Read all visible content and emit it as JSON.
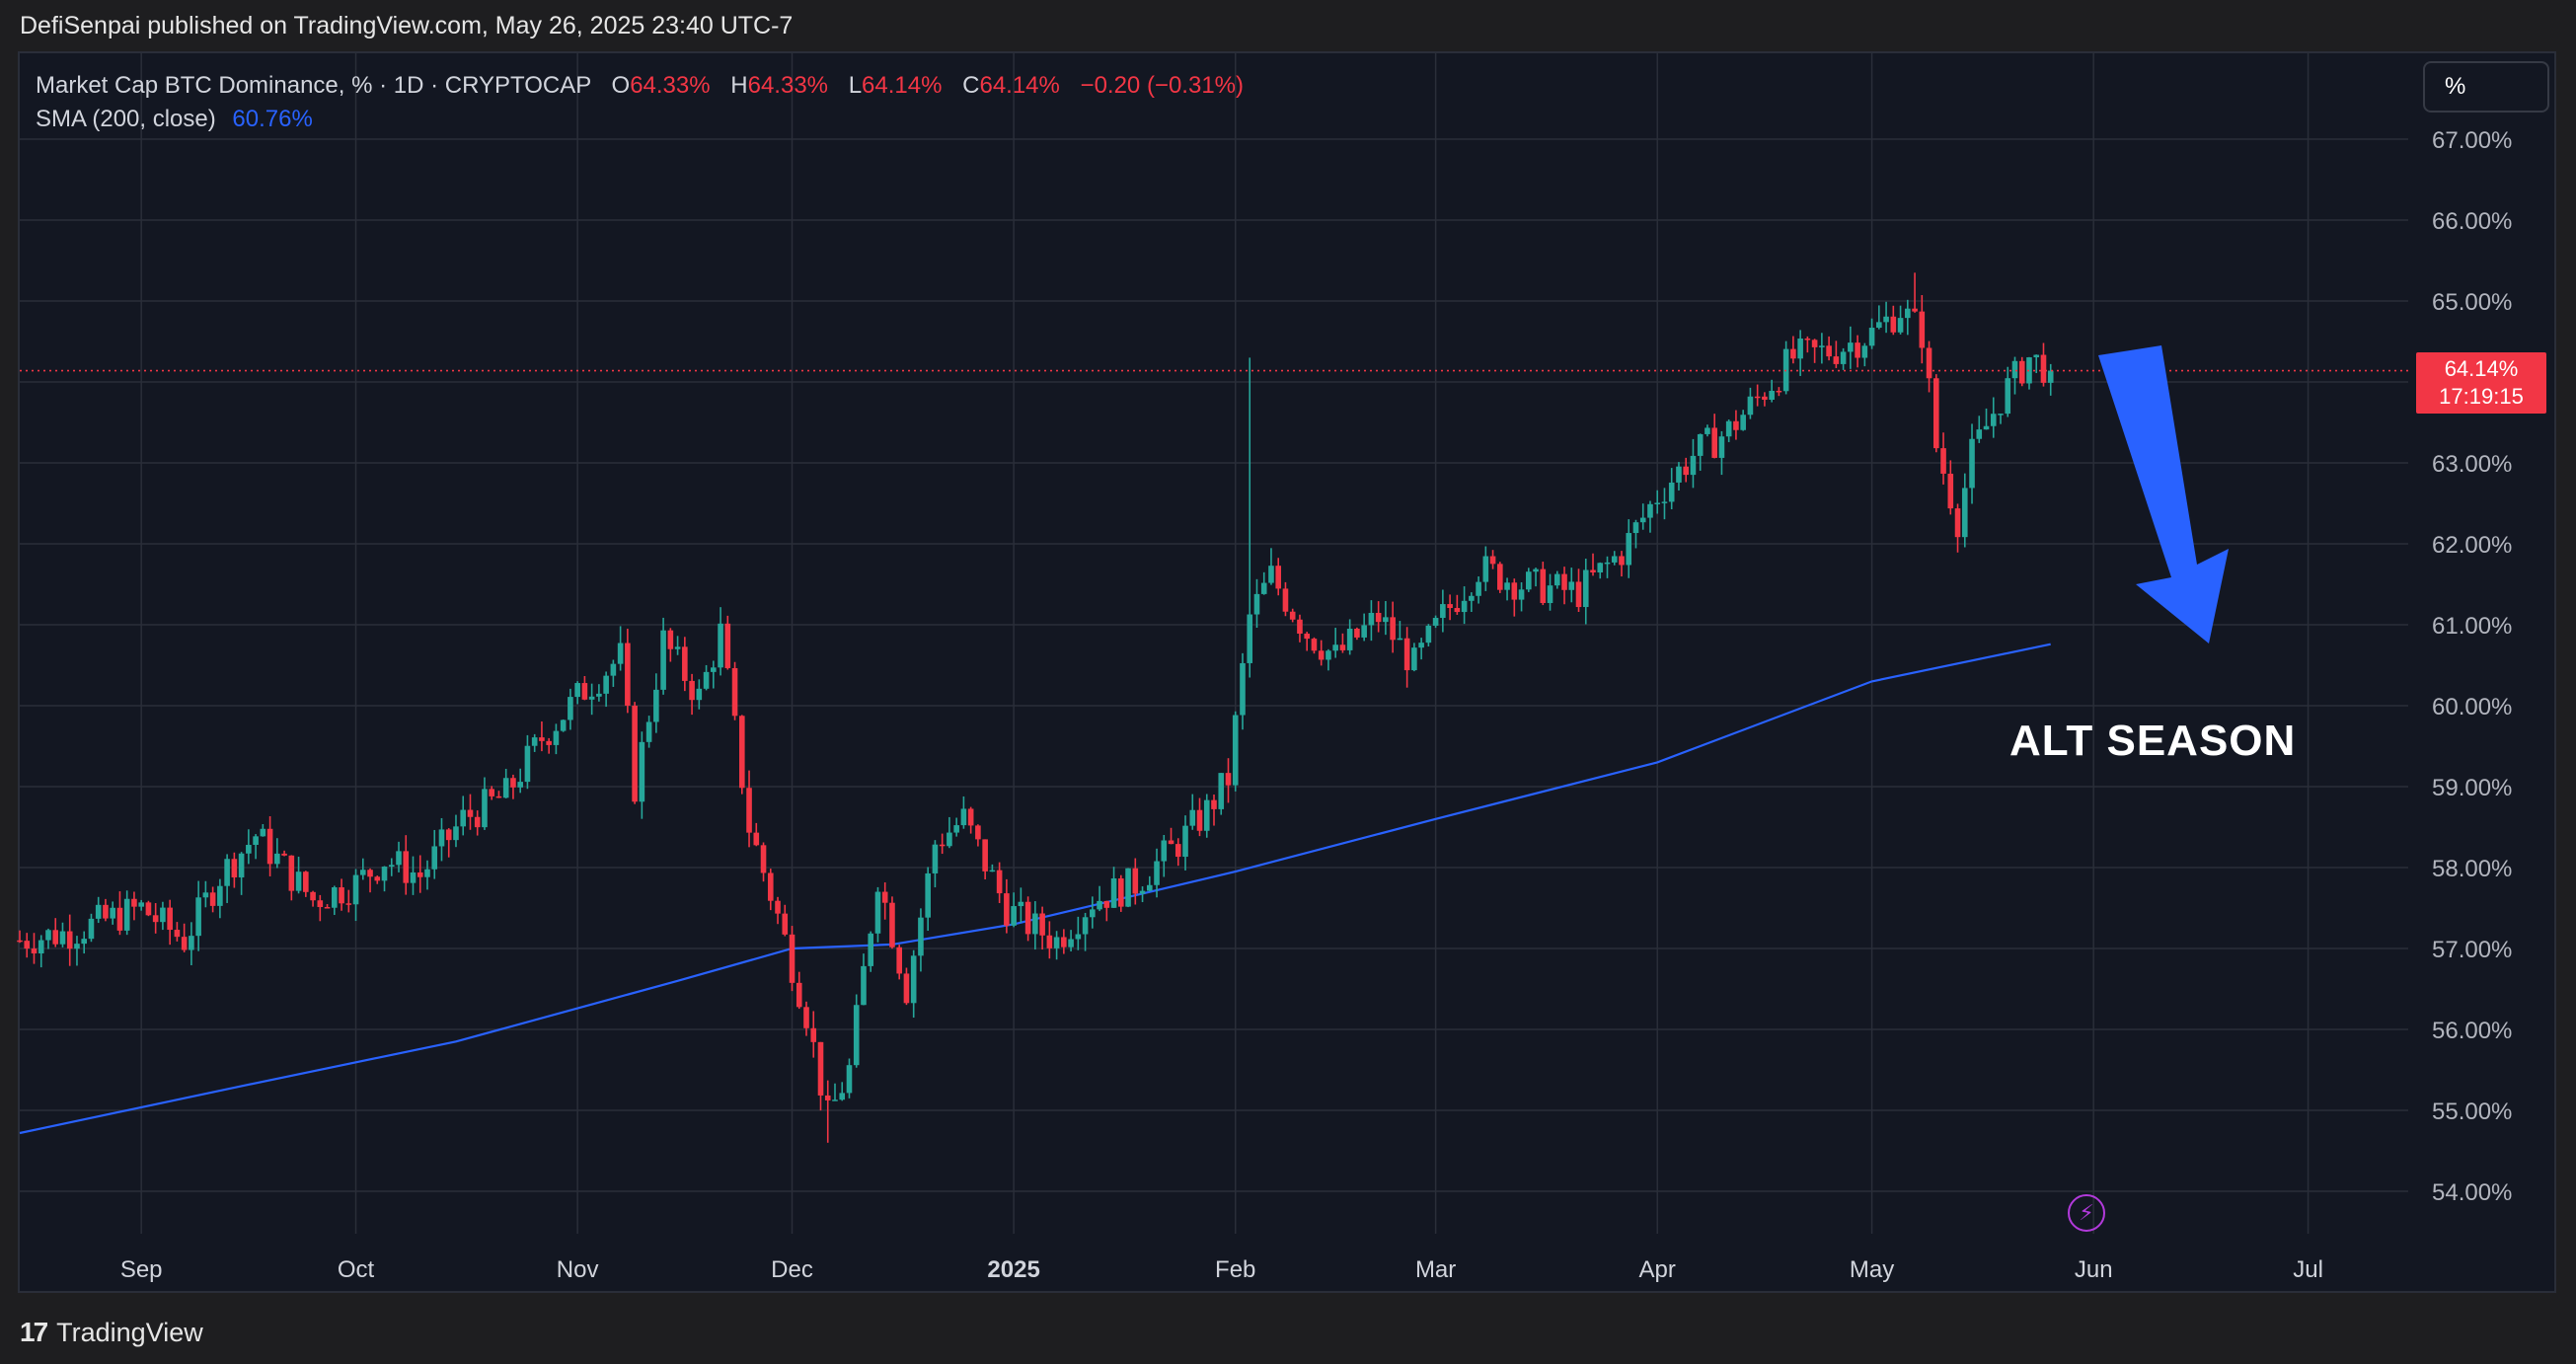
{
  "header": {
    "published": "DefiSenpai published on TradingView.com, May 26, 2025 23:40 UTC-7"
  },
  "legend": {
    "symbol": "Market Cap BTC Dominance, % · 1D · CRYPTOCAP",
    "o_label": "O",
    "o_value": "64.33%",
    "h_label": "H",
    "h_value": "64.33%",
    "l_label": "L",
    "l_value": "64.14%",
    "c_label": "C",
    "c_value": "64.14%",
    "change": "−0.20 (−0.31%)",
    "sma_label": "SMA (200, close)",
    "sma_value": "60.76%"
  },
  "scale_button": "%",
  "price_tag": {
    "price": "64.14%",
    "countdown": "17:19:15"
  },
  "annotation": {
    "text": "ALT SEASON",
    "arrow_color": "#2962ff"
  },
  "footer": {
    "brand": "TradingView",
    "logo_icon": "tradingview-logo-icon"
  },
  "colors": {
    "up": "#26a69a",
    "down": "#f23645",
    "sma": "#2962ff",
    "background": "#131722",
    "grid": "#2a2e39"
  },
  "chart_data": {
    "type": "candlestick",
    "title": "Market Cap BTC Dominance, %",
    "interval": "1D",
    "ylim": [
      53.6,
      67.6
    ],
    "y_ticks": [
      "67.00%",
      "66.00%",
      "65.00%",
      "64.00%",
      "63.00%",
      "62.00%",
      "61.00%",
      "60.00%",
      "59.00%",
      "58.00%",
      "57.00%",
      "56.00%",
      "55.00%",
      "54.00%"
    ],
    "x_ticks": [
      {
        "label": "Sep",
        "date": "2024-09-01"
      },
      {
        "label": "Oct",
        "date": "2024-10-01"
      },
      {
        "label": "Nov",
        "date": "2024-11-01"
      },
      {
        "label": "Dec",
        "date": "2024-12-01"
      },
      {
        "label": "2025",
        "date": "2025-01-01",
        "bold": true
      },
      {
        "label": "Feb",
        "date": "2025-02-01"
      },
      {
        "label": "Mar",
        "date": "2025-03-01"
      },
      {
        "label": "Apr",
        "date": "2025-04-01"
      },
      {
        "label": "May",
        "date": "2025-05-01"
      },
      {
        "label": "Jun",
        "date": "2025-06-01"
      },
      {
        "label": "Jul",
        "date": "2025-07-01"
      }
    ],
    "x_range": [
      "2024-08-15",
      "2025-07-15"
    ],
    "last_price": 64.14,
    "close_series": {
      "start_date": "2024-08-15",
      "end_date": "2025-05-26",
      "keypoints": [
        [
          "2024-08-15",
          57.1
        ],
        [
          "2024-08-22",
          57.2
        ],
        [
          "2024-09-01",
          57.5
        ],
        [
          "2024-09-07",
          57.1
        ],
        [
          "2024-09-12",
          57.9
        ],
        [
          "2024-09-17",
          58.4
        ],
        [
          "2024-09-25",
          57.6
        ],
        [
          "2024-10-01",
          57.8
        ],
        [
          "2024-10-05",
          58.1
        ],
        [
          "2024-10-10",
          57.9
        ],
        [
          "2024-10-16",
          58.6
        ],
        [
          "2024-10-22",
          58.9
        ],
        [
          "2024-10-27",
          59.6
        ],
        [
          "2024-11-02",
          60.2
        ],
        [
          "2024-11-07",
          60.6
        ],
        [
          "2024-11-09",
          59.0
        ],
        [
          "2024-11-13",
          60.8
        ],
        [
          "2024-11-18",
          60.1
        ],
        [
          "2024-11-21",
          60.9
        ],
        [
          "2024-11-25",
          58.5
        ],
        [
          "2024-11-29",
          57.4
        ],
        [
          "2024-12-03",
          56.2
        ],
        [
          "2024-12-06",
          54.9
        ],
        [
          "2024-12-09",
          55.5
        ],
        [
          "2024-12-13",
          57.9
        ],
        [
          "2024-12-17",
          56.5
        ],
        [
          "2024-12-21",
          58.3
        ],
        [
          "2024-12-25",
          58.6
        ],
        [
          "2024-12-31",
          57.5
        ],
        [
          "2025-01-03",
          57.3
        ],
        [
          "2025-01-07",
          57.1
        ],
        [
          "2025-01-12",
          57.6
        ],
        [
          "2025-01-18",
          57.8
        ],
        [
          "2025-01-24",
          58.3
        ],
        [
          "2025-01-28",
          58.7
        ],
        [
          "2025-01-31",
          59.1
        ],
        [
          "2025-02-03",
          61.1
        ],
        [
          "2025-02-06",
          61.6
        ],
        [
          "2025-02-11",
          60.9
        ],
        [
          "2025-02-15",
          60.6
        ],
        [
          "2025-02-21",
          61.1
        ],
        [
          "2025-02-26",
          60.5
        ],
        [
          "2025-03-02",
          61.1
        ],
        [
          "2025-03-07",
          61.7
        ],
        [
          "2025-03-13",
          61.5
        ],
        [
          "2025-03-21",
          61.4
        ],
        [
          "2025-03-27",
          61.9
        ],
        [
          "2025-04-01",
          62.6
        ],
        [
          "2025-04-06",
          63.1
        ],
        [
          "2025-04-11",
          63.4
        ],
        [
          "2025-04-16",
          63.9
        ],
        [
          "2025-04-20",
          64.3
        ],
        [
          "2025-04-26",
          64.4
        ],
        [
          "2025-05-01",
          64.6
        ],
        [
          "2025-05-05",
          64.9
        ],
        [
          "2025-05-08",
          64.6
        ],
        [
          "2025-05-10",
          63.2
        ],
        [
          "2025-05-13",
          62.3
        ],
        [
          "2025-05-15",
          63.1
        ],
        [
          "2025-05-19",
          63.8
        ],
        [
          "2025-05-23",
          64.3
        ],
        [
          "2025-05-26",
          64.14
        ]
      ]
    },
    "sma_series": {
      "name": "SMA (200, close)",
      "points": [
        [
          "2024-08-15",
          54.72
        ],
        [
          "2024-09-15",
          55.3
        ],
        [
          "2024-10-15",
          55.85
        ],
        [
          "2024-11-15",
          56.6
        ],
        [
          "2024-12-01",
          57.0
        ],
        [
          "2024-12-15",
          57.05
        ],
        [
          "2025-01-01",
          57.3
        ],
        [
          "2025-02-01",
          57.95
        ],
        [
          "2025-03-01",
          58.6
        ],
        [
          "2025-04-01",
          59.3
        ],
        [
          "2025-05-01",
          60.3
        ],
        [
          "2025-05-26",
          60.76
        ]
      ]
    }
  }
}
